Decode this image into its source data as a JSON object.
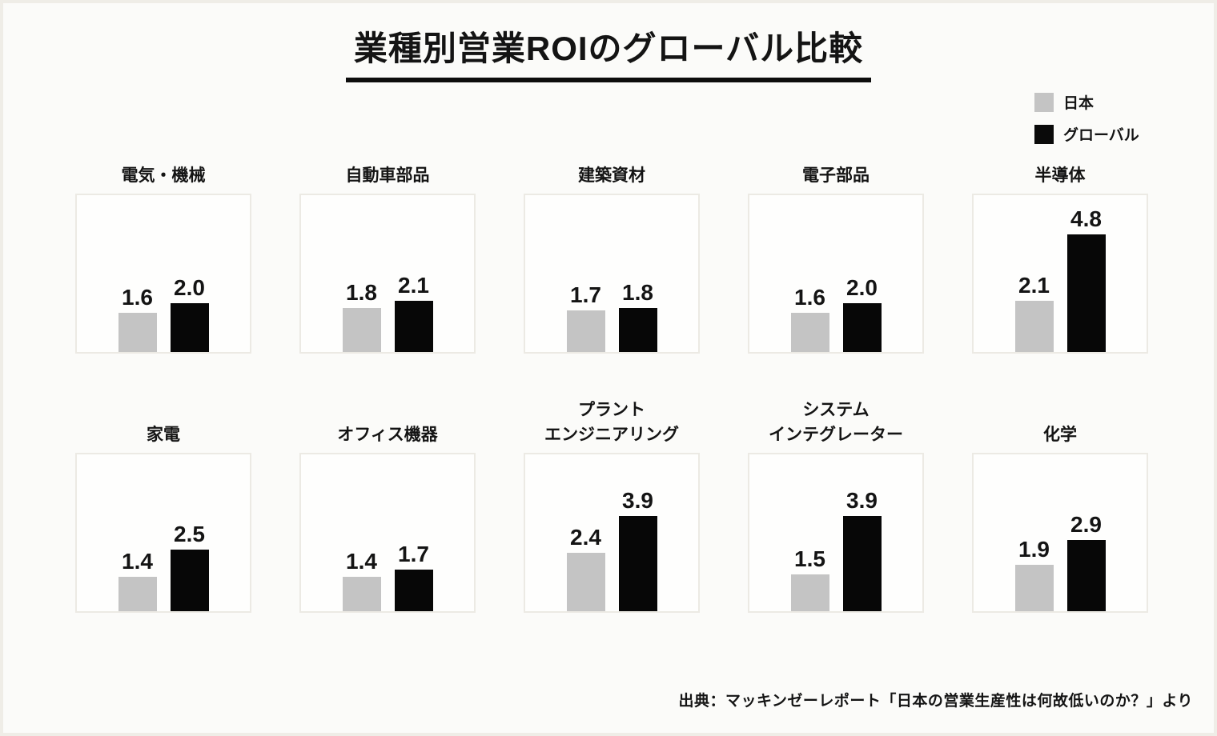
{
  "header": {
    "title": "業種別営業ROIのグローバル比較"
  },
  "legend": {
    "japan": {
      "label": "日本",
      "color": "#c4c4c4"
    },
    "global": {
      "label": "グローバル",
      "color": "#0a0a0a"
    }
  },
  "footer": {
    "source": "出典：マッキンゼーレポート「日本の営業生産性は何故低いのか？」より"
  },
  "chart_data": {
    "type": "bar",
    "title": "業種別営業ROIのグローバル比較",
    "series": [
      "日本",
      "グローバル"
    ],
    "legend_position": "top-right",
    "ylim": [
      0,
      6.5
    ],
    "grid": false,
    "value_precision": 1,
    "charts": [
      {
        "title": "電気・機械",
        "japan": 1.6,
        "global": 2.0
      },
      {
        "title": "自動車部品",
        "japan": 1.8,
        "global": 2.1
      },
      {
        "title": "建築資材",
        "japan": 1.7,
        "global": 1.8
      },
      {
        "title": "電子部品",
        "japan": 1.6,
        "global": 2.0
      },
      {
        "title": "半導体",
        "japan": 2.1,
        "global": 4.8
      },
      {
        "title": "家電",
        "japan": 1.4,
        "global": 2.5
      },
      {
        "title": "オフィス機器",
        "japan": 1.4,
        "global": 1.7
      },
      {
        "title": "プラント\nエンジニアリング",
        "japan": 2.4,
        "global": 3.9
      },
      {
        "title": "システム\nインテグレーター",
        "japan": 1.5,
        "global": 3.9
      },
      {
        "title": "化学",
        "japan": 1.9,
        "global": 2.9
      }
    ]
  }
}
